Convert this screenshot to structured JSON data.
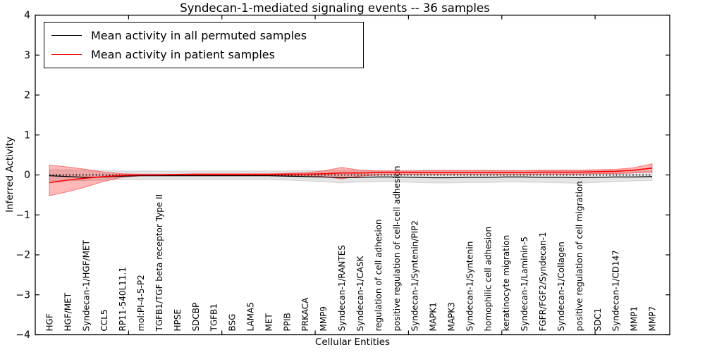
{
  "title": "Syndecan-1-mediated signaling events -- 36 samples",
  "legend": {
    "items": [
      {
        "label": "Mean activity in all permuted samples",
        "color": "#000000"
      },
      {
        "label": "Mean activity in patient samples",
        "color": "#ff0000"
      }
    ]
  },
  "chart_data": {
    "type": "line",
    "title": "Syndecan-1-mediated signaling events -- 36 samples",
    "xlabel": "Cellular Entities",
    "ylabel": "Inferred Activity",
    "ylim": [
      -4,
      4
    ],
    "ytick_labels": [
      "4",
      "3",
      "2",
      "1",
      "0",
      "−1",
      "−2",
      "−3",
      "−4"
    ],
    "ytick_values": [
      4,
      3,
      2,
      1,
      0,
      -1,
      -2,
      -3,
      -4
    ],
    "xtick_units": [
      5,
      10,
      15,
      20,
      25,
      30
    ],
    "x_axis_units": 34,
    "grid": false,
    "legend_position": "upper left",
    "categories": [
      "HGF",
      "HGF/MET",
      "Syndecan-1/HGF/MET",
      "CCL5",
      "RP11-540L11.1",
      "mol:PI-4-5-P2",
      "TGFB1/TGF beta receptor Type II",
      "HPSE",
      "SDCBP",
      "TGFB1",
      "BSG",
      "LAMA5",
      "MET",
      "PPIB",
      "PRKACA",
      "MMP9",
      "Syndecan-1/RANTES",
      "Syndecan-1/CASK",
      "regulation of cell adhesion",
      "positive regulation of cell-cell adhesion",
      "Syndecan-1/Syntenin/PIP2",
      "MAPK1",
      "MAPK3",
      "Syndecan-1/Syntenin",
      "homophilic cell adhesion",
      "keratinocyte migration",
      "Syndecan-1/Laminin-5",
      "FGFR/FGF2/Syndecan-1",
      "Syndecan-1/Collagen",
      "positive regulation of cell migration",
      "SDC1",
      "Syndecan-1/CD147",
      "MMP1",
      "MMP7"
    ],
    "series": [
      {
        "name": "Mean activity in all permuted samples",
        "color": "#000000",
        "values": [
          -0.02,
          -0.04,
          -0.06,
          -0.05,
          -0.03,
          -0.02,
          -0.02,
          -0.02,
          -0.02,
          -0.02,
          -0.02,
          -0.02,
          -0.02,
          -0.03,
          -0.04,
          -0.05,
          -0.07,
          -0.06,
          -0.05,
          -0.05,
          -0.06,
          -0.07,
          -0.07,
          -0.06,
          -0.06,
          -0.05,
          -0.05,
          -0.06,
          -0.06,
          -0.07,
          -0.06,
          -0.05,
          -0.05,
          -0.04
        ]
      },
      {
        "name": "Mean activity in patient samples",
        "color": "#ff0000",
        "values": [
          -0.19,
          -0.13,
          -0.08,
          -0.04,
          -0.01,
          0.0,
          0.0,
          0.01,
          0.01,
          0.01,
          0.01,
          0.01,
          0.01,
          0.02,
          0.02,
          0.03,
          0.05,
          0.05,
          0.06,
          0.06,
          0.06,
          0.06,
          0.06,
          0.06,
          0.06,
          0.06,
          0.06,
          0.07,
          0.07,
          0.07,
          0.08,
          0.09,
          0.12,
          0.17
        ]
      }
    ],
    "bands": [
      {
        "name": "permuted-samples-range",
        "fill": "rgba(0,0,0,0.10)",
        "stroke": "rgba(0,0,0,0.13)",
        "top": [
          0.13,
          0.13,
          0.12,
          0.11,
          0.1,
          0.1,
          0.1,
          0.1,
          0.1,
          0.1,
          0.1,
          0.1,
          0.1,
          0.1,
          0.11,
          0.11,
          0.12,
          0.12,
          0.11,
          0.11,
          0.12,
          0.12,
          0.12,
          0.12,
          0.12,
          0.11,
          0.11,
          0.12,
          0.12,
          0.12,
          0.12,
          0.11,
          0.1,
          0.1
        ],
        "bottom": [
          -0.14,
          -0.14,
          -0.14,
          -0.13,
          -0.12,
          -0.12,
          -0.12,
          -0.12,
          -0.12,
          -0.12,
          -0.12,
          -0.12,
          -0.12,
          -0.13,
          -0.15,
          -0.17,
          -0.2,
          -0.18,
          -0.17,
          -0.17,
          -0.19,
          -0.2,
          -0.2,
          -0.19,
          -0.19,
          -0.18,
          -0.18,
          -0.19,
          -0.2,
          -0.21,
          -0.19,
          -0.17,
          -0.15,
          -0.14
        ]
      },
      {
        "name": "patient-samples-range",
        "fill": "rgba(255,0,0,0.28)",
        "stroke": "rgba(255,0,0,0.45)",
        "top": [
          0.25,
          0.2,
          0.14,
          0.07,
          0.03,
          0.02,
          0.02,
          0.02,
          0.03,
          0.03,
          0.03,
          0.03,
          0.03,
          0.04,
          0.06,
          0.1,
          0.19,
          0.12,
          0.1,
          0.1,
          0.1,
          0.11,
          0.11,
          0.11,
          0.11,
          0.11,
          0.11,
          0.12,
          0.12,
          0.12,
          0.13,
          0.14,
          0.18,
          0.28
        ],
        "bottom": [
          -0.52,
          -0.42,
          -0.3,
          -0.16,
          -0.06,
          -0.02,
          -0.01,
          -0.01,
          -0.01,
          -0.01,
          -0.01,
          -0.01,
          -0.01,
          -0.01,
          -0.02,
          -0.04,
          -0.1,
          -0.03,
          0.0,
          0.01,
          0.01,
          0.01,
          0.01,
          0.01,
          0.01,
          0.01,
          0.01,
          0.02,
          0.02,
          0.02,
          0.03,
          0.03,
          0.05,
          0.07
        ]
      }
    ],
    "zero_line": {
      "y": 0,
      "style": "dotted",
      "color": "#000000"
    }
  }
}
